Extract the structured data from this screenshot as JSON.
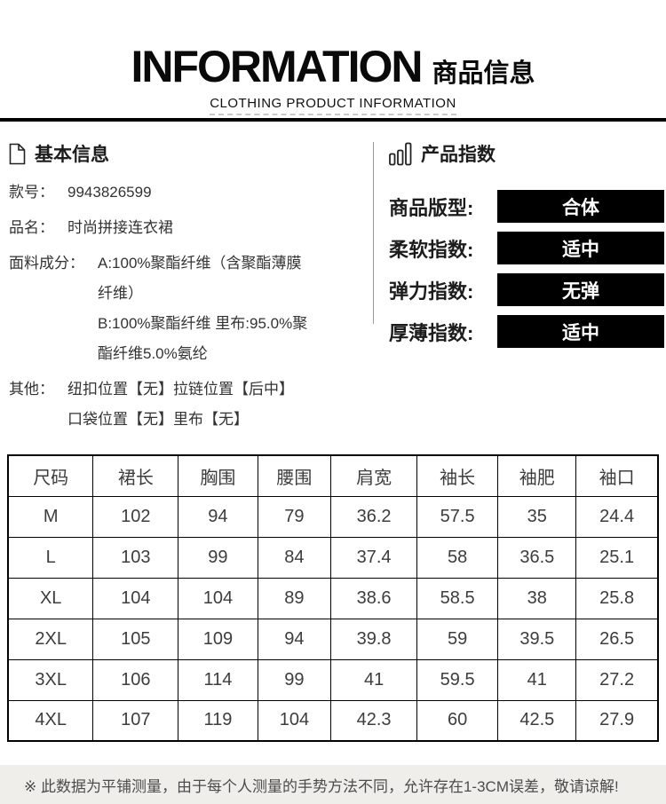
{
  "header": {
    "title_en": "INFORMATION",
    "title_zh": "商品信息",
    "subtitle": "CLOTHING PRODUCT INFORMATION"
  },
  "basic_info": {
    "heading": "基本信息",
    "icon": "document-icon",
    "rows": [
      {
        "label": "款号：",
        "lines": [
          "9943826599"
        ]
      },
      {
        "label": "品名：",
        "lines": [
          "时尚拼接连衣裙"
        ]
      },
      {
        "label": "面料成分：",
        "lines": [
          "A:100%聚酯纤维（含聚酯薄膜",
          "纤维）",
          "B:100%聚酯纤维 里布:95.0%聚",
          "酯纤维5.0%氨纶"
        ]
      },
      {
        "label": "其他：",
        "lines": [
          "纽扣位置【无】拉链位置【后中】",
          "口袋位置【无】里布【无】"
        ]
      }
    ]
  },
  "product_index": {
    "heading": "产品指数",
    "icon": "bar-chart-icon",
    "rows": [
      {
        "label": "商品版型:",
        "value": "合体"
      },
      {
        "label": "柔软指数:",
        "value": "适中"
      },
      {
        "label": "弹力指数:",
        "value": "无弹"
      },
      {
        "label": "厚薄指数:",
        "value": "适中"
      }
    ]
  },
  "size_table": {
    "headers": [
      "尺码",
      "裙长",
      "胸围",
      "腰围",
      "肩宽",
      "袖长",
      "袖肥",
      "袖口"
    ],
    "rows": [
      [
        "M",
        "102",
        "94",
        "79",
        "36.2",
        "57.5",
        "35",
        "24.4"
      ],
      [
        "L",
        "103",
        "99",
        "84",
        "37.4",
        "58",
        "36.5",
        "25.1"
      ],
      [
        "XL",
        "104",
        "104",
        "89",
        "38.6",
        "58.5",
        "38",
        "25.8"
      ],
      [
        "2XL",
        "105",
        "109",
        "94",
        "39.8",
        "59",
        "39.5",
        "26.5"
      ],
      [
        "3XL",
        "106",
        "114",
        "99",
        "41",
        "59.5",
        "41",
        "27.2"
      ],
      [
        "4XL",
        "107",
        "119",
        "104",
        "42.3",
        "60",
        "42.5",
        "27.9"
      ]
    ]
  },
  "footer": {
    "note": "※ 此数据为平铺测量，由于每个人测量的手势方法不同，允许存在1-3CM误差，敬请谅解!"
  },
  "colors": {
    "badge_bg": "#000000",
    "badge_text": "#ffffff",
    "footer_bg": "#f0eeeb",
    "divider": "#9e9e9e",
    "bar": "#000000"
  }
}
